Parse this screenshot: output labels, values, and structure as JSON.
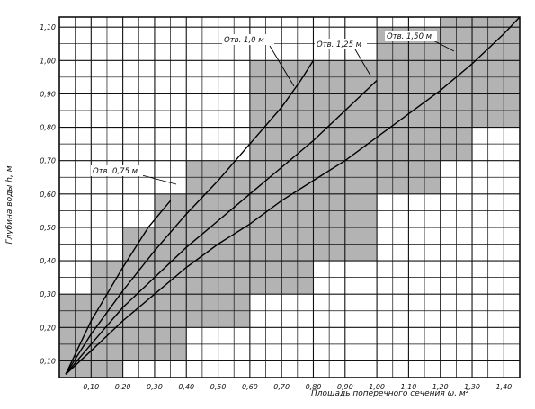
{
  "chart_data": {
    "type": "line",
    "xlabel": "Площадь поперечного сечения ω, м²",
    "ylabel": "Глубина воды h, м",
    "xlim": [
      0,
      1.45
    ],
    "ylim": [
      0.05,
      1.13
    ],
    "x_ticks": [
      "0,10",
      "0,20",
      "0,30",
      "0,40",
      "0,50",
      "0,60",
      "0,70",
      "0,80",
      "0,90",
      "1,00",
      "1,10",
      "1,20",
      "1,30",
      "1,40"
    ],
    "y_ticks": [
      "0,10",
      "0,20",
      "0,30",
      "0,40",
      "0,50",
      "0,60",
      "0,70",
      "0,80",
      "0,90",
      "1,00",
      "1,10"
    ],
    "grid": true,
    "series": [
      {
        "name": "Отв. 0,75 м",
        "x": [
          0.02,
          0.1,
          0.2,
          0.28,
          0.35
        ],
        "y": [
          0.06,
          0.22,
          0.38,
          0.5,
          0.58
        ]
      },
      {
        "name": "Отв. 1,0 м",
        "x": [
          0.02,
          0.1,
          0.2,
          0.3,
          0.4,
          0.5,
          0.6,
          0.7,
          0.76,
          0.8
        ],
        "y": [
          0.06,
          0.18,
          0.31,
          0.43,
          0.54,
          0.64,
          0.75,
          0.86,
          0.94,
          1.0
        ]
      },
      {
        "name": "Отв. 1,25 м",
        "x": [
          0.02,
          0.1,
          0.2,
          0.3,
          0.4,
          0.5,
          0.6,
          0.7,
          0.8,
          0.9,
          1.0
        ],
        "y": [
          0.06,
          0.15,
          0.26,
          0.35,
          0.44,
          0.52,
          0.6,
          0.68,
          0.76,
          0.85,
          0.94
        ]
      },
      {
        "name": "Отв. 1,50 м",
        "x": [
          0.02,
          0.1,
          0.2,
          0.3,
          0.4,
          0.5,
          0.6,
          0.7,
          0.8,
          0.9,
          1.0,
          1.1,
          1.2,
          1.3,
          1.4,
          1.45
        ],
        "y": [
          0.06,
          0.13,
          0.22,
          0.3,
          0.38,
          0.45,
          0.51,
          0.58,
          0.64,
          0.7,
          0.77,
          0.84,
          0.91,
          0.99,
          1.08,
          1.13
        ]
      }
    ],
    "shaded_band": [
      {
        "x": [
          0,
          0.1
        ],
        "y": [
          0.05,
          0.3
        ]
      },
      {
        "x": [
          0.1,
          0.2
        ],
        "y": [
          0.05,
          0.4
        ]
      },
      {
        "x": [
          0.2,
          0.3
        ],
        "y": [
          0.1,
          0.5
        ]
      },
      {
        "x": [
          0.3,
          0.4
        ],
        "y": [
          0.1,
          0.6
        ]
      },
      {
        "x": [
          0.4,
          0.5
        ],
        "y": [
          0.2,
          0.7
        ]
      },
      {
        "x": [
          0.5,
          0.6
        ],
        "y": [
          0.2,
          0.7
        ]
      },
      {
        "x": [
          0.6,
          0.7
        ],
        "y": [
          0.3,
          1.0
        ]
      },
      {
        "x": [
          0.7,
          0.8
        ],
        "y": [
          0.3,
          1.0
        ]
      },
      {
        "x": [
          0.8,
          0.9
        ],
        "y": [
          0.4,
          1.0
        ]
      },
      {
        "x": [
          0.9,
          1.0
        ],
        "y": [
          0.4,
          1.0
        ]
      },
      {
        "x": [
          1.0,
          1.1
        ],
        "y": [
          0.6,
          1.1
        ]
      },
      {
        "x": [
          1.1,
          1.2
        ],
        "y": [
          0.6,
          1.1
        ]
      },
      {
        "x": [
          1.2,
          1.3
        ],
        "y": [
          0.7,
          1.13
        ]
      },
      {
        "x": [
          1.3,
          1.45
        ],
        "y": [
          0.8,
          1.13
        ]
      }
    ]
  },
  "colors": {
    "grid": "#111111",
    "shade": "#8a8a8a",
    "line": "#000000"
  }
}
